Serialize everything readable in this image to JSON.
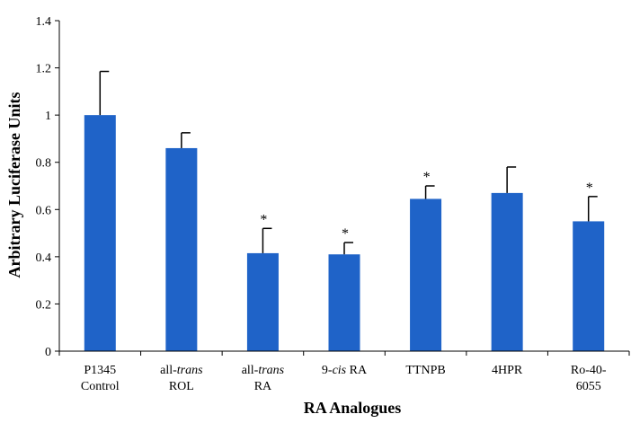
{
  "chart_data": {
    "type": "bar",
    "title": "",
    "xlabel": "RA Analogues",
    "ylabel": "Arbitrary Luciferase Units",
    "ylim": [
      0,
      1.4
    ],
    "yticks": [
      "0",
      "0.2",
      "0.4",
      "0.6",
      "0.8",
      "1",
      "1.2",
      "1.4"
    ],
    "grid": false,
    "legend": "none",
    "bar_color": "#1f63c8",
    "categories": [
      {
        "lines": [
          [
            {
              "t": "P1345",
              "i": false
            }
          ],
          [
            {
              "t": "Control",
              "i": false
            }
          ]
        ]
      },
      {
        "lines": [
          [
            {
              "t": "all-",
              "i": false
            },
            {
              "t": "trans",
              "i": true
            }
          ],
          [
            {
              "t": "ROL",
              "i": false
            }
          ]
        ]
      },
      {
        "lines": [
          [
            {
              "t": "all-",
              "i": false
            },
            {
              "t": "trans",
              "i": true
            }
          ],
          [
            {
              "t": "RA",
              "i": false
            }
          ]
        ]
      },
      {
        "lines": [
          [
            {
              "t": "9-",
              "i": false
            },
            {
              "t": "cis",
              "i": true
            },
            {
              "t": " RA",
              "i": false
            }
          ]
        ]
      },
      {
        "lines": [
          [
            {
              "t": "TTNPB",
              "i": false
            }
          ]
        ]
      },
      {
        "lines": [
          [
            {
              "t": "4HPR",
              "i": false
            }
          ]
        ]
      },
      {
        "lines": [
          [
            {
              "t": "Ro-40-",
              "i": false
            }
          ],
          [
            {
              "t": "6055",
              "i": false
            }
          ]
        ]
      }
    ],
    "values": [
      1.0,
      0.86,
      0.415,
      0.41,
      0.645,
      0.67,
      0.55
    ],
    "error_upper": [
      1.185,
      0.925,
      0.52,
      0.46,
      0.7,
      0.78,
      0.655
    ],
    "significance": [
      "",
      "",
      "*",
      "*",
      "*",
      "",
      "*"
    ]
  }
}
